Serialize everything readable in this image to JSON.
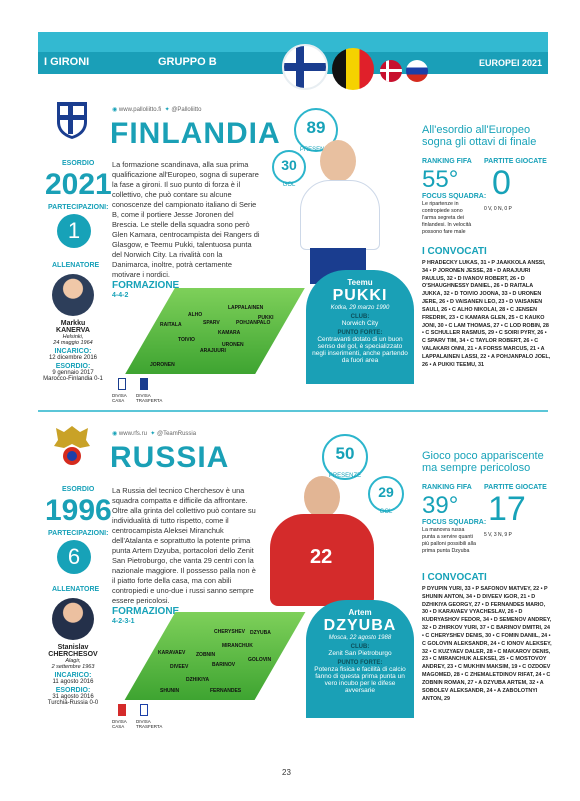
{
  "header": {
    "section": "I GIRONI",
    "group_prefix": "GRUPPO",
    "group_letter": "B",
    "tournament": "EUROPEI 2021"
  },
  "finland": {
    "site": "www.palloliitto.fi",
    "twitter": "@Palloliitto",
    "name": "FINLANDIA",
    "esordio_label": "ESORDIO",
    "esordio": "2021",
    "partecipazioni_label": "PARTECIPAZIONI:",
    "partecipazioni": "1",
    "allenatore_label": "ALLENATORE",
    "coach_name": "Markku",
    "coach_surname": "KANERVA",
    "coach_birth_place": "Helsinki,",
    "coach_birth_date": "24 maggio 1964",
    "incarico_label": "INCARICO:",
    "incarico": "12 dicembre 2016",
    "coach_esordio_label": "ESORDIO:",
    "coach_esordio": "9 gennaio 2017",
    "coach_esordio_match": "Marocco-Finlandia 0-1",
    "text": "La formazione scandinava, alla sua prima qualificazione all'Europeo, sogna di superare la fase a gironi. Il suo punto di forza è il collettivo, che può contare su alcune conoscenze del campionato italiano di Serie B, come il portiere Jesse Joronen del Brescia. Le stelle della squadra sono però Glen Kamara, centrocampista dei Rangers di Glasgow, e Teemu Pukki, talentuosa punta del Norwich City. La rivalità con la Danimarca, inoltre, potrà certamente motivare i nordici.",
    "formazione_label": "FORMAZIONE",
    "formazione": "4-4-2",
    "divisa_casa": "DIVISA CASA",
    "divisa_trasferta": "DIVISA TRASFERTA",
    "pitch_players": [
      "LAPPALAINEN",
      "ALHO",
      "KAMARA",
      "PUKKI",
      "RAITALA",
      "SPARV",
      "TOIVIO",
      "POHJANPALO",
      "ARAJUURI",
      "URONEN",
      "JORONEN"
    ],
    "presenze": "89",
    "presenze_label": "PRESENZE",
    "gol": "30",
    "gol_label": "GOL",
    "player_first": "Teemu",
    "player_last": "PUKKI",
    "player_birth": "Kotka, 29 marzo 1990",
    "club_label": "CLUB:",
    "club": "Norwich City",
    "forte_label": "PUNTO FORTE:",
    "forte": "Centravanti dotato di un buon senso del gol, è specializzato negli inserimenti, anche partendo da fuori area",
    "headline": "All'esordio all'Europeo sogna gli ottavi di finale",
    "ranking_label": "RANKING FIFA",
    "ranking": "55°",
    "partite_label": "PARTITE GIOCATE",
    "partite": "0",
    "partite_detail": "0 V, 0 N, 0 P",
    "focus_label": "FOCUS SQUADRA:",
    "focus": "Le ripartenze in contropiede sono l'arma segreta dei finlandesi. In velocità possono fare male",
    "convocati_label": "I CONVOCATI",
    "convocati": "P HRADECKY LUKAS, 31 • P JAAKKOLA ANSSI, 34 • P JORONEN JESSE, 28 • D ARAJUURI PAULUS, 32 • D IVANOV ROBERT, 26 • D O'SHAUGHNESSY DANIEL, 26 • D RAITALA JUKKA, 32 • D TOIVIO JOONA, 33 • D URONEN JERE, 26 • D VAISANEN LEO, 23 • D VAISANEN SAULI, 26 • C ALHO NIKOLAI, 28 • C JENSEN FREDRIK, 23 • C KAMARA GLEN, 25 • C KAUKO JONI, 30 • C LAM THOMAS, 27 • C LOD ROBIN, 28 • C SCHULLER RASMUS, 29 • C SOIRI PYRY, 26 • C SPARV TIM, 34 • C TAYLOR ROBERT, 26 • C VALAKARI ONNI, 21 • A FORSS MARCUS, 21 • A LAPPALAINEN LASSI, 22 • A POHJANPALO JOEL, 26 • A PUKKI TEEMU, 31"
  },
  "russia": {
    "site": "www.rfs.ru",
    "twitter": "@TeamRussia",
    "name": "RUSSIA",
    "esordio_label": "ESORDIO",
    "esordio": "1996",
    "partecipazioni_label": "PARTECIPAZIONI:",
    "partecipazioni": "6",
    "allenatore_label": "ALLENATORE",
    "coach_name": "Stanislav",
    "coach_surname": "CHERCHESOV",
    "coach_birth_place": "Alagir,",
    "coach_birth_date": "2 settembre 1963",
    "incarico_label": "INCARICO:",
    "incarico": "11 agosto 2016",
    "coach_esordio_label": "ESORDIO:",
    "coach_esordio": "31 agosto 2016",
    "coach_esordio_match": "Turchia-Russia 0-0",
    "text": "La Russia del tecnico Cherchesov è una squadra compatta e difficile da affrontare. Oltre alla grinta del collettivo può contare su individualità di tutto rispetto, come il centrocampista Aleksei Miranchuk dell'Atalanta e soprattutto la potente prima punta Artem Dzyuba, portacolori dello Zenit San Pietroburgo, che vanta 29 centri con la nazionale maggiore. Il possesso palla non è il piatto forte della casa, ma con abili contropiedi e uno-due i russi sanno sempre essere pericolosi.",
    "formazione_label": "FORMAZIONE",
    "formazione": "4-2-3-1",
    "divisa_casa": "DIVISA CASA",
    "divisa_trasferta": "DIVISA TRASFERTA",
    "pitch_players": [
      "CHERYSHEV",
      "MIRANCHUK",
      "DZYUBA",
      "KARAVAEV",
      "ZOBNIN",
      "GOLOVIN",
      "DIVEEV",
      "BARINOV",
      "DZHIKIYA",
      "SHUNIN",
      "FERNANDES"
    ],
    "presenze": "50",
    "presenze_label": "PRESENZE",
    "gol": "29",
    "gol_label": "GOL",
    "player_first": "Artem",
    "player_last": "DZYUBA",
    "player_birth": "Mosca, 22 agosto 1988",
    "club_label": "CLUB:",
    "club": "Zenit San Pietroburgo",
    "forte_label": "PUNTO FORTE:",
    "forte": "Potenza fisica e facilità di calcio fanno di questa prima punta un vero incubo per le difese avversarie",
    "headline": "Gioco poco appariscente ma sempre pericoloso",
    "ranking_label": "RANKING FIFA",
    "ranking": "39°",
    "partite_label": "PARTITE GIOCATE",
    "partite": "17",
    "partite_detail": "5 V, 3 N, 9 P",
    "focus_label": "FOCUS SQUADRA:",
    "focus": "La manovra russa punta a servire quanti più palloni possibili alla prima punta Dzyuba",
    "convocati_label": "I CONVOCATI",
    "convocati": "P DYUPIN YURI, 33 • P SAFONOV MATVEY, 22 • P SHUNIN ANTON, 34 • D DIVEEV IGOR, 21 • D DZHIKIYA GEORGY, 27 • D FERNANDES MARIO, 30 • D KARAVAEV VYACHESLAV, 26 • D KUDRYASHOV FEDOR, 34 • D SEMENOV ANDREY, 32 • D ZHIRKOV YURI, 37 • C BARINOV DMITRI, 24 • C CHERYSHEV DENIS, 30 • C FOMIN DANIIL, 24 • C GOLOVIN ALEKSANDR, 24 • C IONOV ALEKSEY, 32 • C KUZYAEV DALER, 28 • C MAKAROV DENIS, 23 • C MIRANCHUK ALEKSEI, 25 • C MOSTOVOY ANDREY, 23 • C MUKHIN MAKSIM, 19 • C OZDOEV MAGOMED, 28 • C ZHEMALETDINOV RIFAT, 24 • C ZOBNIN ROMAN, 27 • A DZYUBA ARTEM, 32 • A SOBOLEV ALEKSANDR, 24 • A ZABOLOTNYI ANTON, 29"
  },
  "page_number": "23",
  "colors": {
    "accent": "#17a2b8",
    "finland_shirt": "#ffffff",
    "russia_shirt": "#d42b2b",
    "pitch": "#5cbf46"
  }
}
